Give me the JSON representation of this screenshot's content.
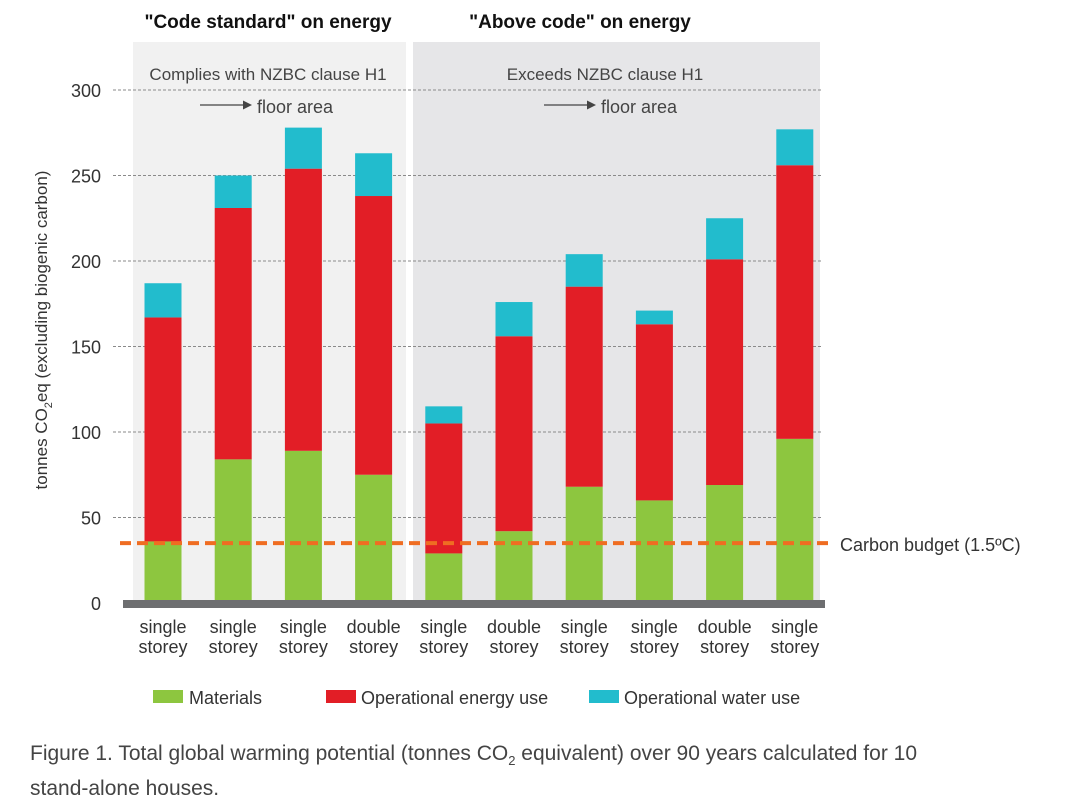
{
  "chart_data": {
    "type": "bar",
    "stacked": true,
    "ylabel": "tonnes CO₂eq (excluding biogenic carbon)",
    "ylabel_parts": [
      "tonnes CO",
      "2",
      "eq (excluding biogenic carbon)"
    ],
    "ylim": [
      0,
      300
    ],
    "yticks": [
      0,
      50,
      100,
      150,
      200,
      250,
      300
    ],
    "grid": true,
    "groups": [
      {
        "title": "\"Code standard\" on energy",
        "subtitle": "Complies with NZBC clause H1",
        "arrow_label": "floor area",
        "count": 4
      },
      {
        "title": "\"Above code\" on energy",
        "subtitle": "Exceeds NZBC clause H1",
        "arrow_label": "floor area",
        "count": 6
      }
    ],
    "categories": [
      [
        "single",
        "storey"
      ],
      [
        "single",
        "storey"
      ],
      [
        "single",
        "storey"
      ],
      [
        "double",
        "storey"
      ],
      [
        "single",
        "storey"
      ],
      [
        "double",
        "storey"
      ],
      [
        "single",
        "storey"
      ],
      [
        "single",
        "storey"
      ],
      [
        "double",
        "storey"
      ],
      [
        "single",
        "storey"
      ]
    ],
    "series": [
      {
        "name": "Materials",
        "color": "#8dc63f",
        "values": [
          36,
          84,
          89,
          75,
          29,
          42,
          68,
          60,
          69,
          96
        ]
      },
      {
        "name": "Operational energy use",
        "color": "#e21e26",
        "values": [
          131,
          147,
          165,
          163,
          76,
          114,
          117,
          103,
          132,
          160
        ]
      },
      {
        "name": "Operational water use",
        "color": "#22bccd",
        "values": [
          20,
          19,
          24,
          25,
          10,
          20,
          19,
          8,
          24,
          21
        ]
      }
    ],
    "reference_line": {
      "label": "Carbon budget (1.5ºC)",
      "value": 35,
      "color": "#ef6d22"
    },
    "legend": "bottom"
  },
  "caption": {
    "before_sub": "Figure 1. Total global warming potential (tonnes CO",
    "sub": "2",
    "after_sub": " equivalent) over 90 years calculated for 10 stand-alone houses."
  }
}
